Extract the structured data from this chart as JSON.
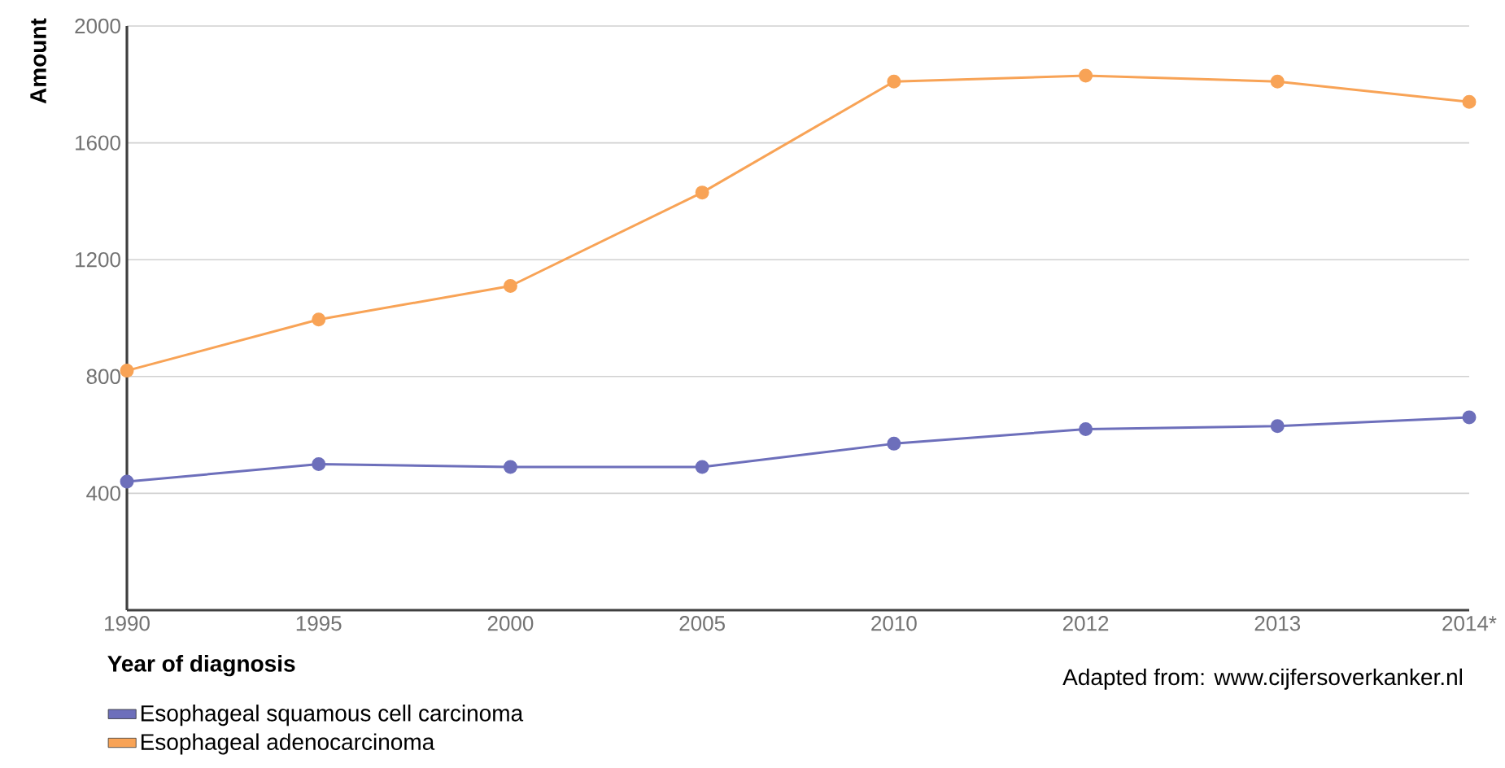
{
  "chart_data": {
    "type": "line",
    "xlabel": "Year of diagnosis",
    "ylabel": "Amount",
    "categories": [
      "1990",
      "1995",
      "2000",
      "2005",
      "2010",
      "2012",
      "2013",
      "2014*"
    ],
    "series": [
      {
        "name": "Esophageal squamous cell carcinoma",
        "color": "#6d6fbb",
        "values": [
          440,
          500,
          490,
          490,
          570,
          620,
          630,
          660
        ]
      },
      {
        "name": "Esophageal adenocarcinoma",
        "color": "#f8a356",
        "values": [
          820,
          995,
          1110,
          1430,
          1810,
          1830,
          1810,
          1740
        ]
      }
    ],
    "ylim": [
      0,
      2000
    ],
    "yticks": [
      400,
      800,
      1200,
      1600,
      2000
    ],
    "grid": "y",
    "legend": "bottom",
    "marker": "circle",
    "line_style": "solid",
    "annotations": [
      "Adapted from: www.cijfersoverkanker.nl"
    ]
  }
}
